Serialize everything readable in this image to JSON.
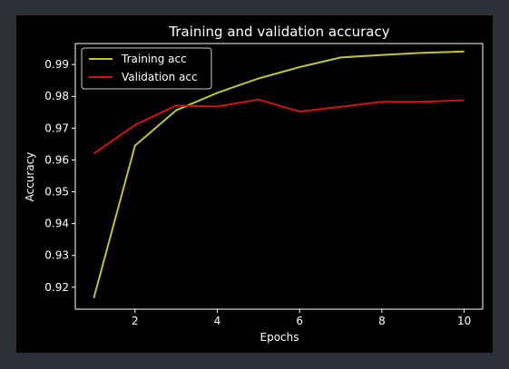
{
  "chart_data": {
    "type": "line",
    "title": "Training and validation accuracy",
    "xlabel": "Epochs",
    "ylabel": "Accuracy",
    "x": [
      1,
      2,
      3,
      4,
      5,
      6,
      7,
      8,
      9,
      10
    ],
    "xlim": [
      0.55,
      10.45
    ],
    "ylim": [
      0.9131,
      0.9966
    ],
    "xticks": [
      2,
      4,
      6,
      8,
      10
    ],
    "yticks": [
      0.92,
      0.93,
      0.94,
      0.95,
      0.96,
      0.97,
      0.98,
      0.99
    ],
    "ytick_labels": [
      "0.92",
      "0.93",
      "0.94",
      "0.95",
      "0.96",
      "0.97",
      "0.98",
      "0.99"
    ],
    "grid": false,
    "legend_position": "top-left",
    "series": [
      {
        "name": "Training acc",
        "color": "#c2c23a",
        "values": [
          0.9166,
          0.9645,
          0.9756,
          0.9811,
          0.9856,
          0.9892,
          0.9922,
          0.993,
          0.9937,
          0.9941
        ]
      },
      {
        "name": "Validation acc",
        "color": "#d01414",
        "values": [
          0.962,
          0.971,
          0.9771,
          0.9768,
          0.979,
          0.9752,
          0.9767,
          0.9783,
          0.9783,
          0.9788
        ]
      }
    ]
  }
}
